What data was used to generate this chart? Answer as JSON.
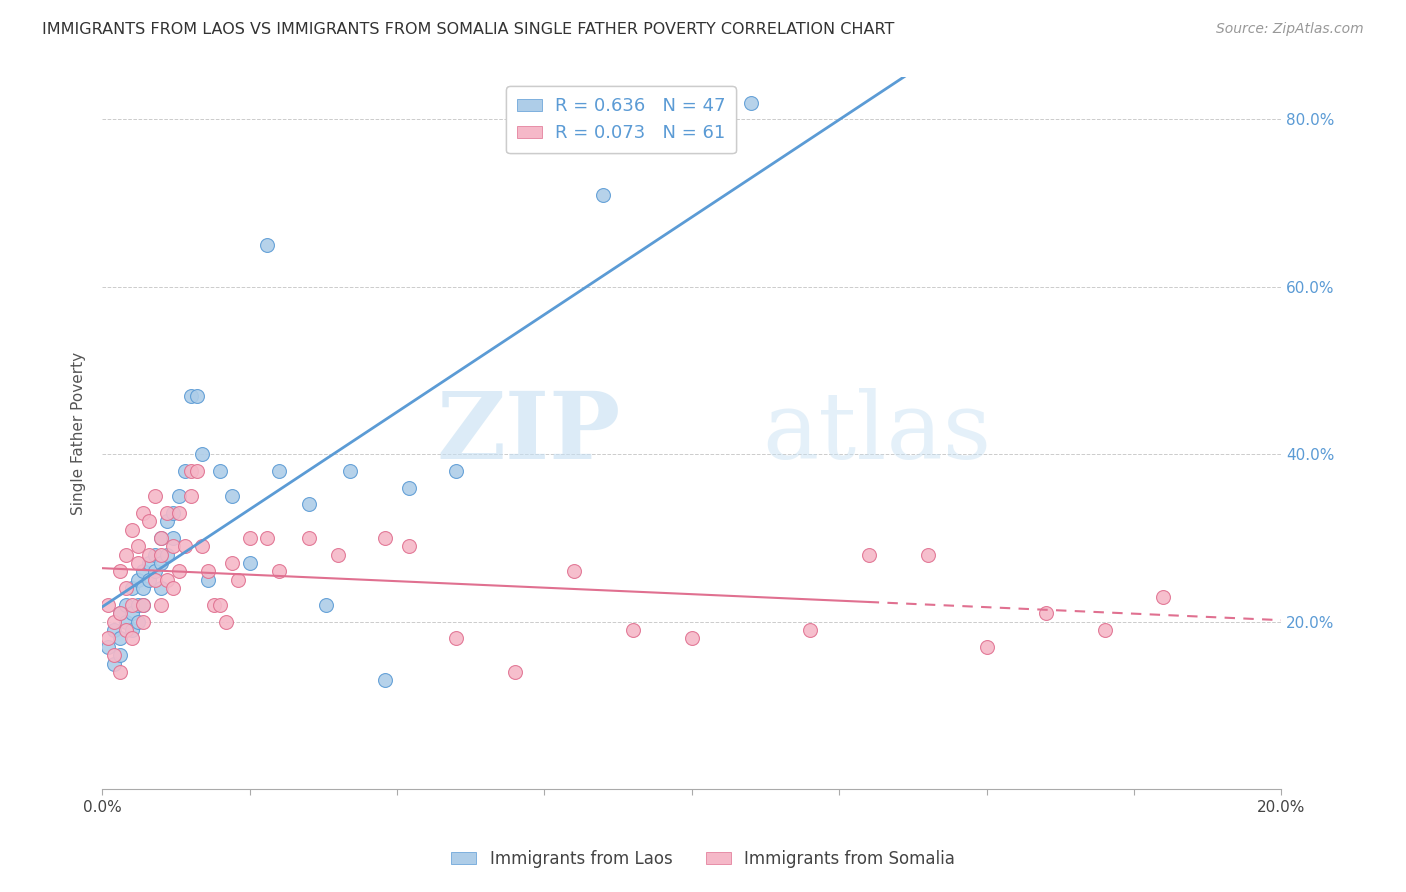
{
  "title": "IMMIGRANTS FROM LAOS VS IMMIGRANTS FROM SOMALIA SINGLE FATHER POVERTY CORRELATION CHART",
  "source": "Source: ZipAtlas.com",
  "ylabel": "Single Father Poverty",
  "xlim": [
    0.0,
    0.2
  ],
  "ylim": [
    0.0,
    0.85
  ],
  "laos_R": 0.636,
  "laos_N": 47,
  "somalia_R": 0.073,
  "somalia_N": 61,
  "laos_color": "#aecde8",
  "somalia_color": "#f5b8c8",
  "laos_line_color": "#5b9bd5",
  "somalia_line_color": "#e07090",
  "watermark_zip": "ZIP",
  "watermark_atlas": "atlas",
  "laos_x": [
    0.001,
    0.002,
    0.002,
    0.003,
    0.003,
    0.003,
    0.004,
    0.004,
    0.005,
    0.005,
    0.005,
    0.006,
    0.006,
    0.006,
    0.007,
    0.007,
    0.007,
    0.008,
    0.008,
    0.009,
    0.009,
    0.01,
    0.01,
    0.01,
    0.011,
    0.011,
    0.012,
    0.012,
    0.013,
    0.014,
    0.015,
    0.016,
    0.017,
    0.018,
    0.02,
    0.022,
    0.025,
    0.028,
    0.03,
    0.035,
    0.038,
    0.042,
    0.048,
    0.052,
    0.06,
    0.085,
    0.11
  ],
  "laos_y": [
    0.17,
    0.19,
    0.15,
    0.21,
    0.18,
    0.16,
    0.22,
    0.2,
    0.24,
    0.21,
    0.19,
    0.25,
    0.22,
    0.2,
    0.26,
    0.24,
    0.22,
    0.27,
    0.25,
    0.28,
    0.26,
    0.3,
    0.27,
    0.24,
    0.32,
    0.28,
    0.33,
    0.3,
    0.35,
    0.38,
    0.47,
    0.47,
    0.4,
    0.25,
    0.38,
    0.35,
    0.27,
    0.65,
    0.38,
    0.34,
    0.22,
    0.38,
    0.13,
    0.36,
    0.38,
    0.71,
    0.82
  ],
  "somalia_x": [
    0.001,
    0.001,
    0.002,
    0.002,
    0.003,
    0.003,
    0.003,
    0.004,
    0.004,
    0.004,
    0.005,
    0.005,
    0.005,
    0.006,
    0.006,
    0.007,
    0.007,
    0.007,
    0.008,
    0.008,
    0.009,
    0.009,
    0.01,
    0.01,
    0.01,
    0.011,
    0.011,
    0.012,
    0.012,
    0.013,
    0.013,
    0.014,
    0.015,
    0.015,
    0.016,
    0.017,
    0.018,
    0.019,
    0.02,
    0.021,
    0.022,
    0.023,
    0.025,
    0.028,
    0.03,
    0.035,
    0.04,
    0.048,
    0.052,
    0.06,
    0.07,
    0.08,
    0.09,
    0.1,
    0.12,
    0.13,
    0.14,
    0.15,
    0.16,
    0.17,
    0.18
  ],
  "somalia_y": [
    0.22,
    0.18,
    0.2,
    0.16,
    0.14,
    0.26,
    0.21,
    0.19,
    0.24,
    0.28,
    0.22,
    0.31,
    0.18,
    0.29,
    0.27,
    0.33,
    0.22,
    0.2,
    0.32,
    0.28,
    0.35,
    0.25,
    0.3,
    0.28,
    0.22,
    0.33,
    0.25,
    0.29,
    0.24,
    0.33,
    0.26,
    0.29,
    0.38,
    0.35,
    0.38,
    0.29,
    0.26,
    0.22,
    0.22,
    0.2,
    0.27,
    0.25,
    0.3,
    0.3,
    0.26,
    0.3,
    0.28,
    0.3,
    0.29,
    0.18,
    0.14,
    0.26,
    0.19,
    0.18,
    0.19,
    0.28,
    0.28,
    0.17,
    0.21,
    0.19,
    0.23
  ]
}
